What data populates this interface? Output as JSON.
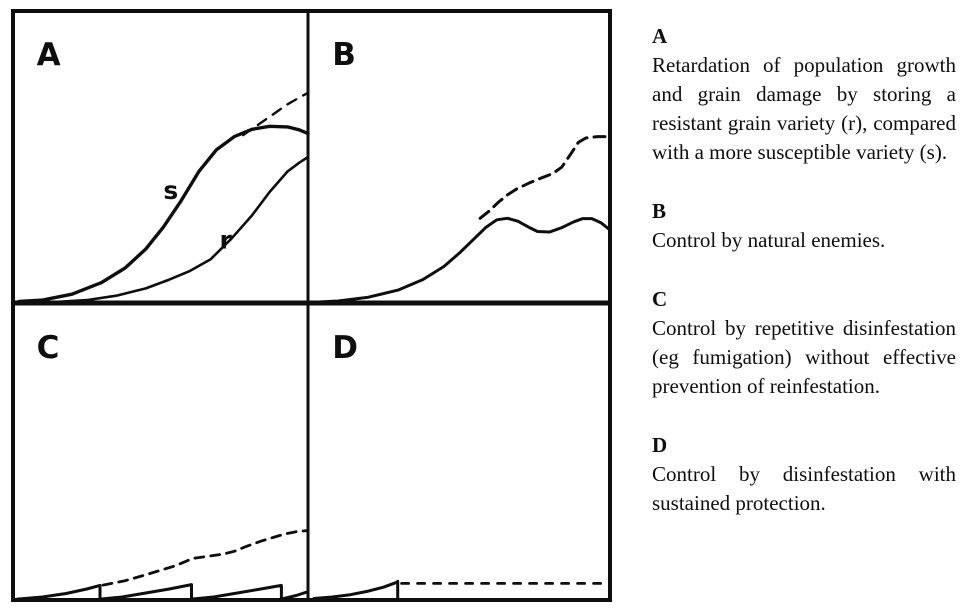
{
  "colors": {
    "ink": "#0e0e0e",
    "paper": "#ffffff"
  },
  "chart_data": {
    "type": "line",
    "description": "Four schematic line panels (A-D) showing insect population growth / grain damage over time (axes unlabelled) under different stored-grain pest control strategies; dashed lines show unchecked growth",
    "panels": [
      {
        "id": "A",
        "label": "A",
        "curves": [
          {
            "name": "susceptible-variety-curve",
            "style": "solid",
            "width": 3.4,
            "points": [
              [
                2,
                0.5
              ],
              [
                10,
                1
              ],
              [
                20,
                3
              ],
              [
                30,
                7
              ],
              [
                38,
                12
              ],
              [
                45,
                18.5
              ],
              [
                51,
                26
              ],
              [
                57,
                35
              ],
              [
                63,
                45
              ],
              [
                69,
                52.5
              ],
              [
                75,
                57
              ],
              [
                81,
                59.5
              ],
              [
                87,
                60.5
              ],
              [
                93,
                60.3
              ],
              [
                97,
                59.3
              ],
              [
                100,
                58
              ]
            ]
          },
          {
            "name": "resistant-variety-curve",
            "style": "solid",
            "width": 2.6,
            "points": [
              [
                12,
                0.2
              ],
              [
                25,
                1
              ],
              [
                35,
                2.5
              ],
              [
                45,
                5
              ],
              [
                53,
                8
              ],
              [
                60,
                11
              ],
              [
                67,
                15
              ],
              [
                74,
                22
              ],
              [
                81,
                30
              ],
              [
                87,
                38
              ],
              [
                93,
                45
              ],
              [
                97,
                48
              ],
              [
                100,
                50
              ]
            ]
          },
          {
            "name": "unchecked-growth-dashed-curve",
            "style": "dashed",
            "width": 2.4,
            "dash": [
              10,
              8
            ],
            "points": [
              [
                78,
                57.5
              ],
              [
                83,
                61
              ],
              [
                88,
                64.5
              ],
              [
                93,
                68
              ],
              [
                97,
                70.3
              ],
              [
                100,
                72
              ]
            ]
          }
        ],
        "annotations": [
          {
            "text": "s",
            "x": 51,
            "y": 38
          },
          {
            "text": "r",
            "x": 70,
            "y": 21
          }
        ]
      },
      {
        "id": "B",
        "label": "B",
        "curves": [
          {
            "name": "natural-enemy-controlled-curve",
            "style": "solid",
            "width": 3,
            "points": [
              [
                1,
                0.2
              ],
              [
                10,
                0.7
              ],
              [
                20,
                2
              ],
              [
                30,
                4.5
              ],
              [
                38,
                8
              ],
              [
                45,
                12.5
              ],
              [
                50,
                17
              ],
              [
                55,
                22
              ],
              [
                59,
                26
              ],
              [
                62.5,
                28.5
              ],
              [
                66,
                29
              ],
              [
                69.5,
                28
              ],
              [
                73,
                26
              ],
              [
                76,
                24.5
              ],
              [
                80,
                24.3
              ],
              [
                84,
                25.8
              ],
              [
                88,
                27.8
              ],
              [
                91,
                28.9
              ],
              [
                94,
                28.9
              ],
              [
                97,
                27.5
              ],
              [
                100,
                25
              ]
            ]
          },
          {
            "name": "unchecked-growth-dashed-curve",
            "style": "dashed",
            "width": 3,
            "dash": [
              11,
              7
            ],
            "points": [
              [
                57,
                29
              ],
              [
                60,
                31.5
              ],
              [
                63,
                34.5
              ],
              [
                66,
                37
              ],
              [
                69,
                39
              ],
              [
                73,
                41
              ],
              [
                77,
                42.7
              ],
              [
                81,
                44.3
              ],
              [
                84,
                46.5
              ],
              [
                87,
                51
              ],
              [
                89.5,
                55
              ],
              [
                92,
                56.5
              ],
              [
                96,
                57
              ],
              [
                100,
                57
              ]
            ]
          }
        ],
        "annotations": []
      },
      {
        "id": "C",
        "label": "C",
        "curves": [
          {
            "name": "repeated-disinfestation-sawtooth-curve",
            "style": "solid",
            "width": 3,
            "points": [
              [
                1.5,
                0.3
              ],
              [
                10,
                1
              ],
              [
                18,
                2.2
              ],
              [
                25,
                3.7
              ],
              [
                29.5,
                4.9
              ],
              [
                29.5,
                0.3
              ],
              [
                37,
                1
              ],
              [
                44,
                2.2
              ],
              [
                53,
                3.7
              ],
              [
                60.5,
                5.2
              ],
              [
                60.5,
                0.3
              ],
              [
                68,
                1
              ],
              [
                75,
                2.2
              ],
              [
                84,
                3.7
              ],
              [
                91,
                4.9
              ],
              [
                91,
                0.3
              ],
              [
                96,
                1.5
              ],
              [
                100,
                2.8
              ]
            ]
          },
          {
            "name": "unchecked-growth-dashed-curve",
            "style": "dashed",
            "width": 2.8,
            "dash": [
              9,
              7
            ],
            "points": [
              [
                30.5,
                5
              ],
              [
                38,
                6.5
              ],
              [
                45,
                8.5
              ],
              [
                50,
                10
              ],
              [
                55,
                11.5
              ],
              [
                61,
                14
              ],
              [
                66,
                14.7
              ],
              [
                71,
                15.4
              ],
              [
                75,
                16.4
              ],
              [
                79,
                18
              ],
              [
                84,
                19.8
              ],
              [
                88,
                21
              ],
              [
                92,
                22.2
              ],
              [
                96,
                23
              ],
              [
                100,
                23.4
              ]
            ]
          }
        ],
        "annotations": []
      },
      {
        "id": "D",
        "label": "D",
        "curves": [
          {
            "name": "initial-growth-then-disinfestation-curve",
            "style": "solid",
            "width": 3,
            "points": [
              [
                2,
                0.5
              ],
              [
                8,
                1
              ],
              [
                14,
                1.8
              ],
              [
                20,
                3
              ],
              [
                25,
                4.3
              ],
              [
                29.5,
                6
              ],
              [
                29.7,
                6.3
              ],
              [
                29.7,
                0
              ]
            ]
          },
          {
            "name": "sustained-protection-dashed-line",
            "style": "dashed",
            "width": 2.8,
            "dash": [
              7,
              9
            ],
            "points": [
              [
                31,
                5.6
              ],
              [
                100,
                5.6
              ]
            ]
          }
        ],
        "annotations": []
      }
    ]
  },
  "caption": {
    "items": [
      {
        "heading": "A",
        "body": "Retardation of population growth and grain damage by storing a resistant grain variety (r), compared with a more susceptible variety (s)."
      },
      {
        "heading": "B",
        "body": "Control by natural enemies."
      },
      {
        "heading": "C",
        "body": "Control by repetitive disinfestation (eg fumigation) without effective prevention of reinfestation."
      },
      {
        "heading": "D",
        "body": "Control by disinfestation with sustained protection."
      }
    ]
  }
}
